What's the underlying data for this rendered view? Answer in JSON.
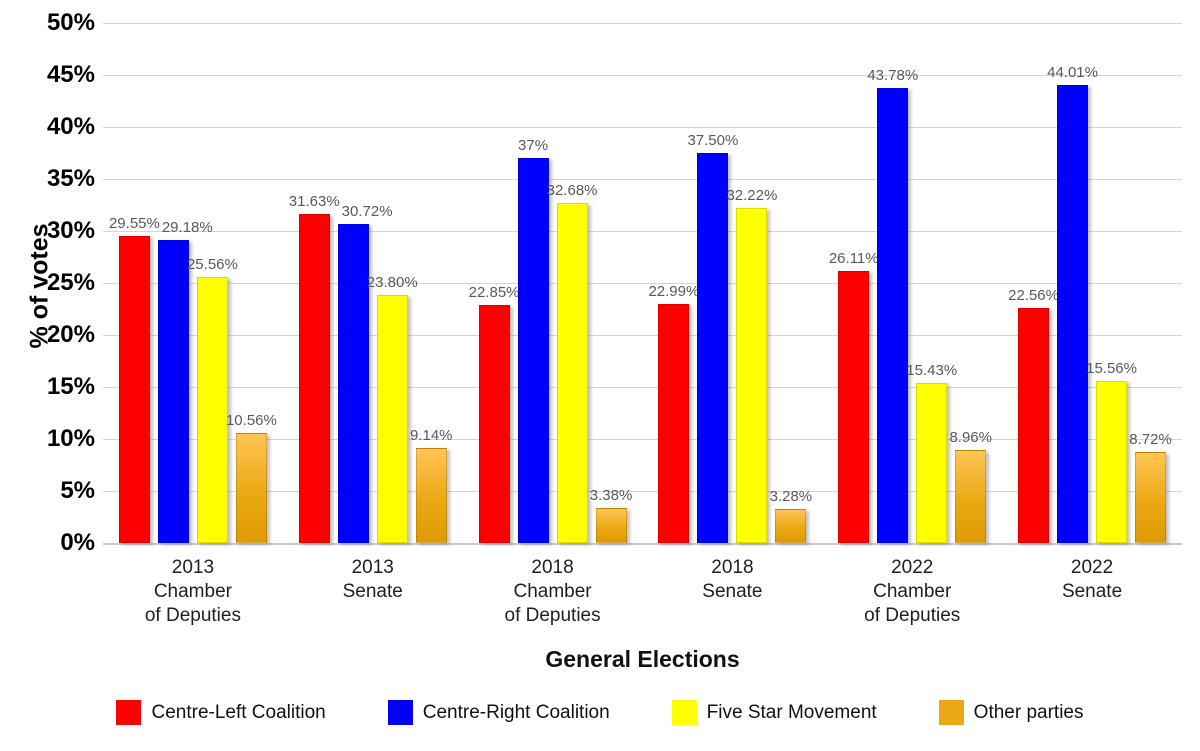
{
  "chart_data": {
    "type": "bar",
    "title": "",
    "xlabel": "General Elections",
    "ylabel": "% of votes",
    "ylim": [
      0,
      50
    ],
    "ytick_step": 5,
    "ytick_labels": [
      "0%",
      "5%",
      "10%",
      "15%",
      "20%",
      "25%",
      "30%",
      "35%",
      "40%",
      "45%",
      "50%"
    ],
    "grid": true,
    "legend_position": "bottom",
    "categories": [
      [
        "2013",
        "Chamber",
        "of Deputies"
      ],
      [
        "2013",
        "Senate"
      ],
      [
        "2018",
        "Chamber",
        "of Deputies"
      ],
      [
        "2018",
        "Senate"
      ],
      [
        "2022",
        "Chamber",
        "of Deputies"
      ],
      [
        "2022",
        "Senate"
      ]
    ],
    "series": [
      {
        "name": "Centre-Left Coalition",
        "color": "#FF0000",
        "values": [
          29.55,
          31.63,
          22.85,
          22.99,
          26.11,
          22.56
        ],
        "labels": [
          "29.55%",
          "31.63%",
          "22.85%",
          "22.99%",
          "26.11%",
          "22.56%"
        ]
      },
      {
        "name": "Centre-Right Coalition",
        "color": "#0000FF",
        "values": [
          29.18,
          30.72,
          37,
          37.5,
          43.78,
          44.01
        ],
        "labels": [
          "29.18%",
          "30.72%",
          "37%",
          "37.50%",
          "43.78%",
          "44.01%"
        ]
      },
      {
        "name": "Five Star Movement",
        "color": "#FFFF00",
        "values": [
          25.56,
          23.8,
          32.68,
          32.22,
          15.43,
          15.56
        ],
        "labels": [
          "25.56%",
          "23.80%",
          "32.68%",
          "32.22%",
          "15.43%",
          "15.56%"
        ]
      },
      {
        "name": "Other parties",
        "color": "#EAA914",
        "gradient_top": "#FFC554",
        "gradient_bottom": "#DF9B00",
        "values": [
          10.56,
          9.14,
          3.38,
          3.28,
          8.96,
          8.72
        ],
        "labels": [
          "10.56%",
          "9.14%",
          "3.38%",
          "3.28%",
          "8.96%",
          "8.72%"
        ]
      }
    ],
    "colors": {
      "gridline": "#d4d4d4",
      "data_label": "#595959",
      "axis_text": "#000000"
    }
  }
}
